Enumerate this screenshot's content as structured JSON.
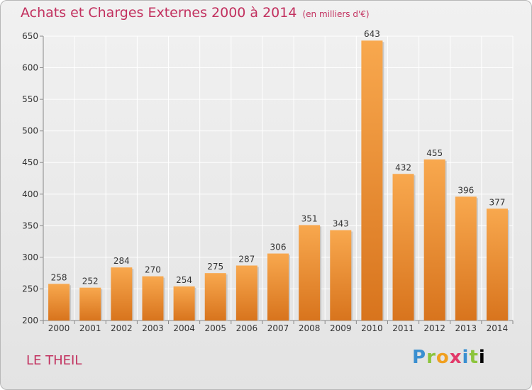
{
  "title": "Achats et Charges Externes 2000 à 2014",
  "unit": "(en milliers d'€)",
  "place": "LE THEIL",
  "logo": {
    "text": "Proxiti",
    "letters": [
      "P",
      "r",
      "o",
      "x",
      "i",
      "t",
      "i"
    ]
  },
  "colors": {
    "bar_top": "#f8a84e",
    "bar_bottom": "#d8741d",
    "title": "#c2315f",
    "grid": "#ffffff"
  },
  "chart_data": {
    "type": "bar",
    "categories": [
      "2000",
      "2001",
      "2002",
      "2003",
      "2004",
      "2005",
      "2006",
      "2007",
      "2008",
      "2009",
      "2010",
      "2011",
      "2012",
      "2013",
      "2014"
    ],
    "values": [
      258,
      252,
      284,
      270,
      254,
      275,
      287,
      306,
      351,
      343,
      643,
      432,
      455,
      396,
      377
    ],
    "ylim": [
      200,
      650
    ],
    "yticks": [
      200,
      250,
      300,
      350,
      400,
      450,
      500,
      550,
      600,
      650
    ],
    "grid": true
  }
}
